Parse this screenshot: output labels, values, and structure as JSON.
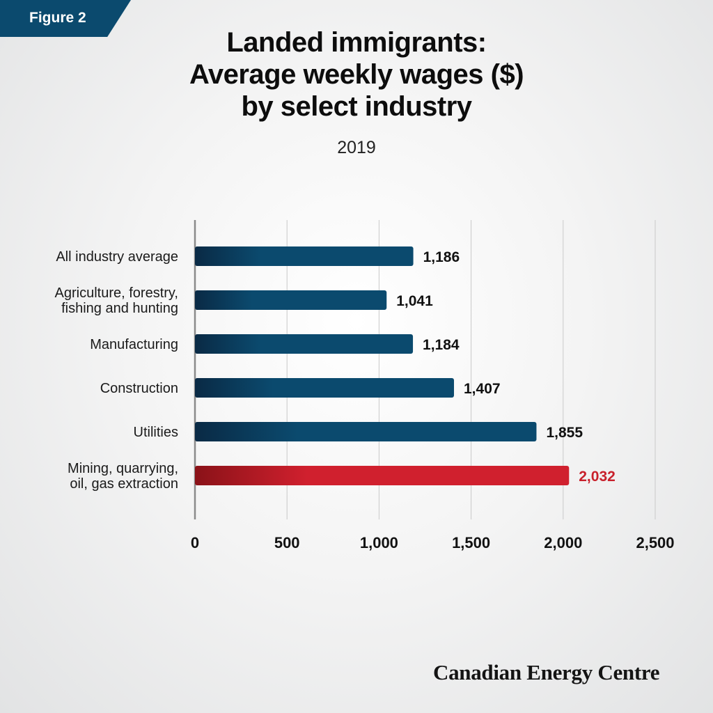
{
  "badge": "Figure 2",
  "title_lines": [
    "Landed immigrants:",
    "Average weekly wages ($)",
    "by select industry"
  ],
  "subtitle": "2019",
  "brand": "Canadian Energy Centre",
  "colors": {
    "badge": "#0b4a6e",
    "bar_blue": "#0b4a6e",
    "bar_blue_dark": "#0a2a45",
    "bar_red": "#d0202e",
    "bar_red_dark": "#8a1218",
    "highlight_label": "#c8202b"
  },
  "chart_data": {
    "type": "bar",
    "orientation": "horizontal",
    "categories": [
      [
        "All industry average"
      ],
      [
        "Agriculture, forestry,",
        "fishing and hunting"
      ],
      [
        "Manufacturing"
      ],
      [
        "Construction"
      ],
      [
        "Utilities"
      ],
      [
        "Mining, quarrying,",
        "oil, gas extraction"
      ]
    ],
    "values": [
      1186,
      1041,
      1184,
      1407,
      1855,
      2032
    ],
    "value_labels": [
      "1,186",
      "1,041",
      "1,184",
      "1,407",
      "1,855",
      "2,032"
    ],
    "highlight_index": 5,
    "xlim": [
      0,
      2500
    ],
    "xticks": [
      0,
      500,
      1000,
      1500,
      2000,
      2500
    ],
    "xtick_labels": [
      "0",
      "500",
      "1,000",
      "1,500",
      "2,000",
      "2,500"
    ],
    "grid": "vertical",
    "legend": "none"
  }
}
